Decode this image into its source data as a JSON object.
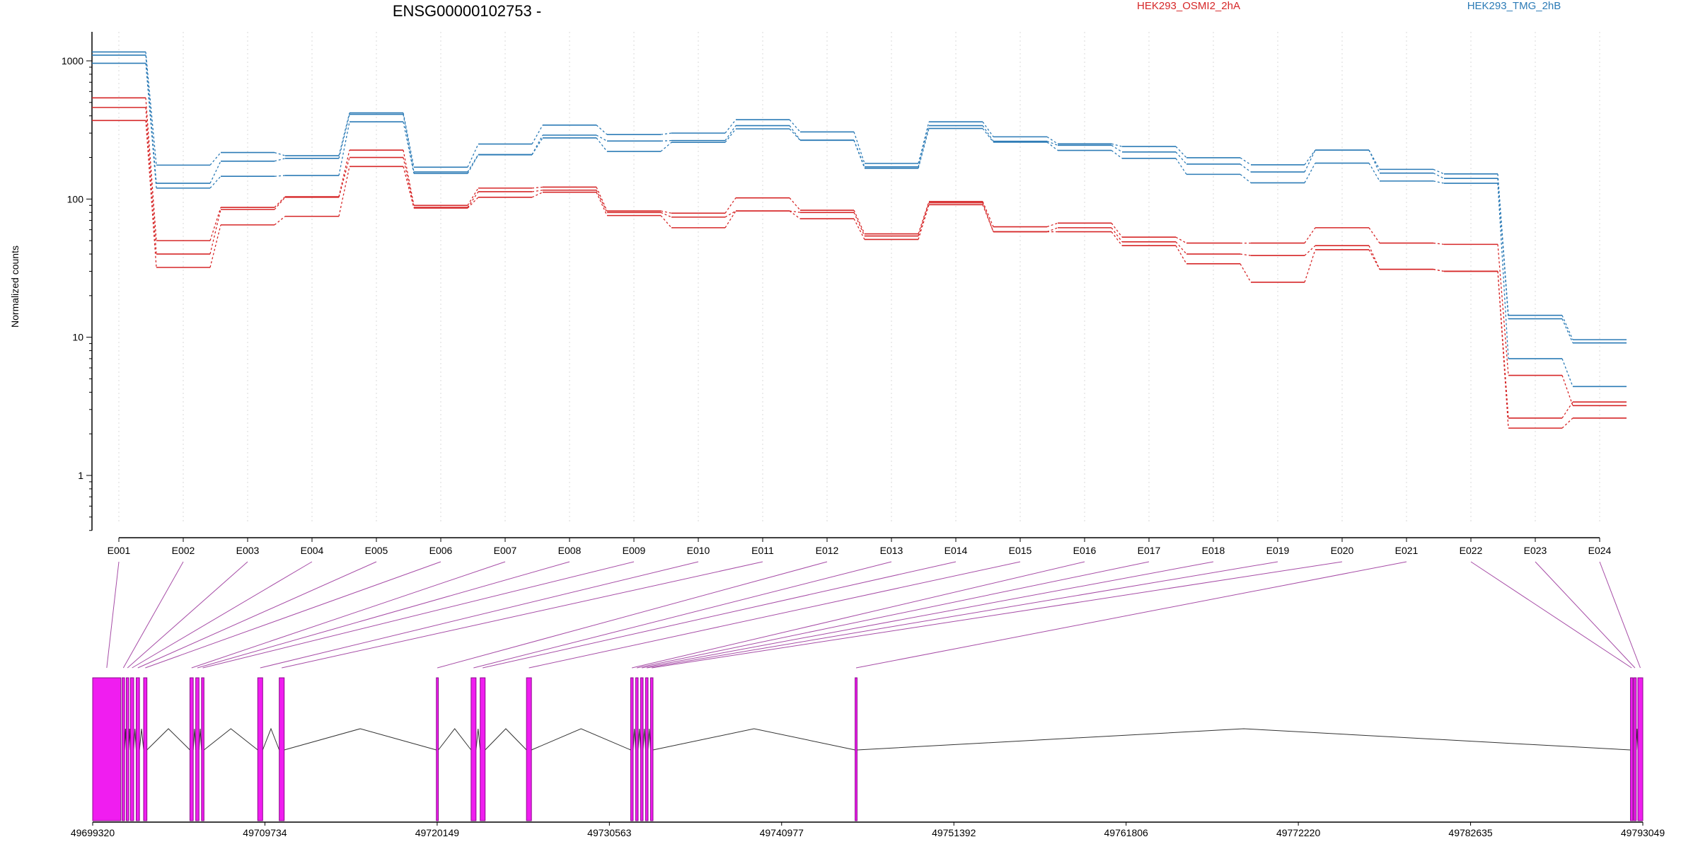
{
  "chart_data": {
    "type": "line",
    "title": "ENSG00000102753 -",
    "ylabel": "Normalized counts",
    "yscale": "log",
    "ylim": [
      0.4,
      1600
    ],
    "yticks": [
      "1",
      "10",
      "100",
      "1000"
    ],
    "grid": "vertical dotted lines at exon bins",
    "legend_placement": "top",
    "categories": [
      "E001",
      "E002",
      "E003",
      "E004",
      "E005",
      "E006",
      "E007",
      "E008",
      "E009",
      "E010",
      "E011",
      "E012",
      "E013",
      "E014",
      "E015",
      "E016",
      "E017",
      "E018",
      "E019",
      "E020",
      "E021",
      "E022",
      "E023",
      "E024"
    ],
    "series": [
      {
        "name": "HEK293_OSMI2_2hA",
        "group": "red",
        "values": [
          540,
          50,
          87,
          104,
          226,
          90,
          120,
          122,
          82,
          79,
          102,
          83,
          56,
          96,
          63,
          67,
          53,
          48,
          48,
          62,
          48,
          47,
          5.3,
          3.2
        ]
      },
      {
        "name": "HEK293_OSMI2_2hA",
        "group": "red",
        "values": [
          460,
          40,
          84,
          103,
          200,
          87,
          113,
          116,
          80,
          74,
          82,
          80,
          54,
          94,
          58,
          62,
          49,
          40,
          39,
          46,
          31,
          30,
          2.6,
          3.4
        ]
      },
      {
        "name": "HEK293_OSMI2_2hA",
        "group": "red",
        "values": [
          370,
          32,
          65,
          75,
          172,
          86,
          103,
          112,
          76,
          62,
          82,
          72,
          51,
          91,
          58,
          58,
          46,
          34,
          25,
          43,
          31,
          30,
          2.2,
          2.6
        ]
      },
      {
        "name": "HEK293_TMG_2hB",
        "group": "blue",
        "values": [
          1160,
          176,
          217,
          206,
          420,
          170,
          250,
          343,
          293,
          300,
          375,
          306,
          181,
          362,
          282,
          251,
          240,
          199,
          177,
          226,
          164,
          152,
          14.4,
          9.6
        ]
      },
      {
        "name": "HEK293_TMG_2hB",
        "group": "blue",
        "values": [
          1100,
          130,
          188,
          197,
          410,
          157,
          210,
          290,
          263,
          265,
          340,
          267,
          171,
          340,
          262,
          245,
          219,
          179,
          157,
          226,
          154,
          141,
          13.6,
          9.1
        ]
      },
      {
        "name": "HEK293_TMG_2hB",
        "group": "blue",
        "values": [
          960,
          120,
          146,
          148,
          362,
          153,
          209,
          277,
          221,
          257,
          322,
          266,
          167,
          324,
          258,
          225,
          197,
          151,
          131,
          182,
          135,
          130,
          7.0,
          4.4
        ]
      }
    ],
    "colors": {
      "red": "#d62728",
      "blue": "#2c7bb6",
      "exon_fill": "#f01df0",
      "exon_stroke": "#8b0a8b",
      "connector": "#a64ca6"
    },
    "genomic_axis": {
      "labels": [
        "49699320",
        "49709734",
        "49720149",
        "49730563",
        "49740977",
        "49751392",
        "49761806",
        "49772220",
        "49782635",
        "49793049"
      ],
      "start": 49699320,
      "end": 49793049
    },
    "exons": [
      {
        "start": 49699320,
        "end": 49701020,
        "bin": "E001"
      },
      {
        "start": 49701100,
        "end": 49701250,
        "bin": "E002"
      },
      {
        "start": 49701350,
        "end": 49701500,
        "bin": "E003"
      },
      {
        "start": 49701600,
        "end": 49701800,
        "bin": "E004"
      },
      {
        "start": 49701950,
        "end": 49702150,
        "bin": "E005"
      },
      {
        "start": 49702400,
        "end": 49702600,
        "bin": "E006"
      },
      {
        "start": 49705200,
        "end": 49705400,
        "bin": "E007"
      },
      {
        "start": 49705550,
        "end": 49705750,
        "bin": "E008"
      },
      {
        "start": 49705900,
        "end": 49706050,
        "bin": "E009"
      },
      {
        "start": 49709300,
        "end": 49709600,
        "bin": "E010"
      },
      {
        "start": 49710600,
        "end": 49710900,
        "bin": "E011"
      },
      {
        "start": 49720100,
        "end": 49720220,
        "bin": "E012"
      },
      {
        "start": 49722200,
        "end": 49722500,
        "bin": "E013"
      },
      {
        "start": 49722750,
        "end": 49723050,
        "bin": "E014"
      },
      {
        "start": 49725550,
        "end": 49725850,
        "bin": "E015"
      },
      {
        "start": 49731850,
        "end": 49732000,
        "bin": "E016"
      },
      {
        "start": 49732150,
        "end": 49732300,
        "bin": "E017"
      },
      {
        "start": 49732450,
        "end": 49732600,
        "bin": "E018"
      },
      {
        "start": 49732750,
        "end": 49732900,
        "bin": "E019"
      },
      {
        "start": 49733050,
        "end": 49733200,
        "bin": "E020"
      },
      {
        "start": 49745420,
        "end": 49745540,
        "bin": "E021"
      },
      {
        "start": 49792300,
        "end": 49792450,
        "bin": "E022"
      },
      {
        "start": 49792500,
        "end": 49792650,
        "bin": "E023"
      },
      {
        "start": 49792750,
        "end": 49793049,
        "bin": "E024"
      }
    ]
  }
}
